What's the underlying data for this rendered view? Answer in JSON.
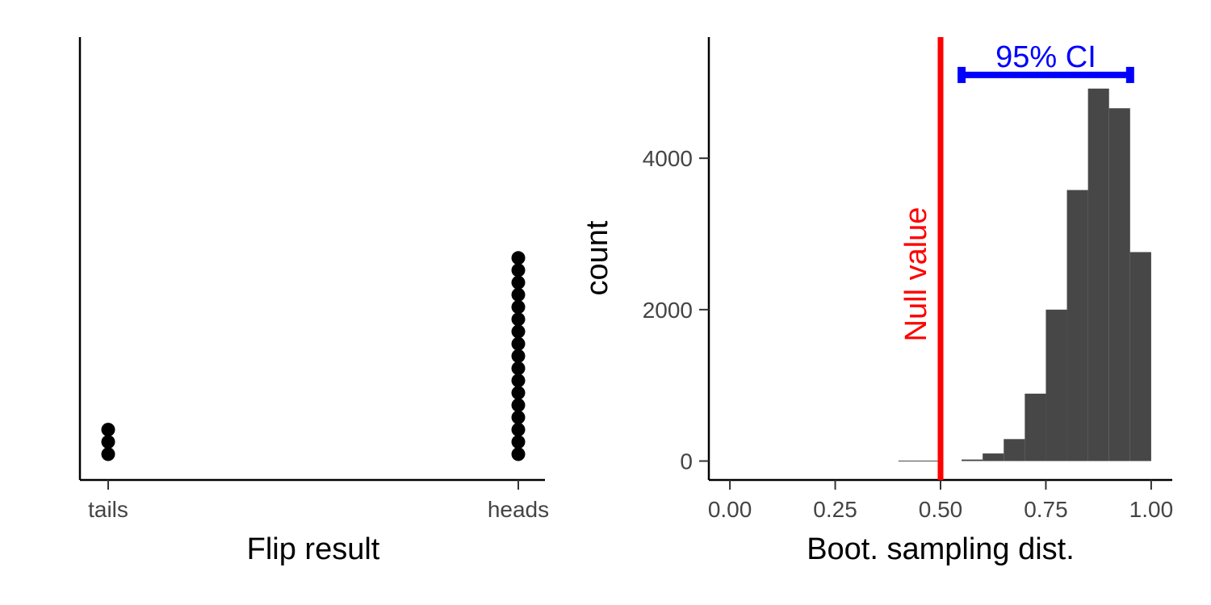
{
  "chart_data": [
    {
      "type": "scatter",
      "subtype": "dotplot",
      "categories": [
        "tails",
        "heads"
      ],
      "counts": [
        3,
        17
      ],
      "xlabel": "Flip result",
      "ylabel": "",
      "y_axis_ticks": false,
      "grid": false,
      "colors": {
        "points": "#000000"
      }
    },
    {
      "type": "bar",
      "subtype": "histogram",
      "bins": [
        {
          "x0": 0.4,
          "x1": 0.45,
          "count": 5
        },
        {
          "x0": 0.45,
          "x1": 0.5,
          "count": 5
        },
        {
          "x0": 0.5,
          "x1": 0.55,
          "count": 0
        },
        {
          "x0": 0.55,
          "x1": 0.6,
          "count": 20
        },
        {
          "x0": 0.6,
          "x1": 0.65,
          "count": 100
        },
        {
          "x0": 0.65,
          "x1": 0.7,
          "count": 290
        },
        {
          "x0": 0.7,
          "x1": 0.75,
          "count": 890
        },
        {
          "x0": 0.75,
          "x1": 0.8,
          "count": 2000
        },
        {
          "x0": 0.8,
          "x1": 0.85,
          "count": 3580
        },
        {
          "x0": 0.85,
          "x1": 0.9,
          "count": 4920
        },
        {
          "x0": 0.9,
          "x1": 0.95,
          "count": 4660
        },
        {
          "x0": 0.95,
          "x1": 1.0,
          "count": 2760
        }
      ],
      "xlabel": "Boot. sampling dist.",
      "ylabel": "count",
      "xlim": [
        -0.05,
        1.05
      ],
      "ylim": [
        -250,
        5600
      ],
      "x_ticks": [
        0,
        0.25,
        0.5,
        0.75,
        1
      ],
      "x_tick_labels": [
        "0.00",
        "0.25",
        "0.50",
        "0.75",
        "1.00"
      ],
      "y_ticks": [
        0,
        2000,
        4000
      ],
      "y_tick_labels": [
        "0",
        "2000",
        "4000"
      ],
      "null_line": {
        "x": 0.5,
        "label": "Null value",
        "color": "#ff0000"
      },
      "ci": {
        "lower": 0.55,
        "upper": 0.95,
        "y": 5100,
        "label": "95% CI",
        "color": "#0000ff"
      },
      "grid": false,
      "colors": {
        "bars": "#474747"
      }
    }
  ]
}
